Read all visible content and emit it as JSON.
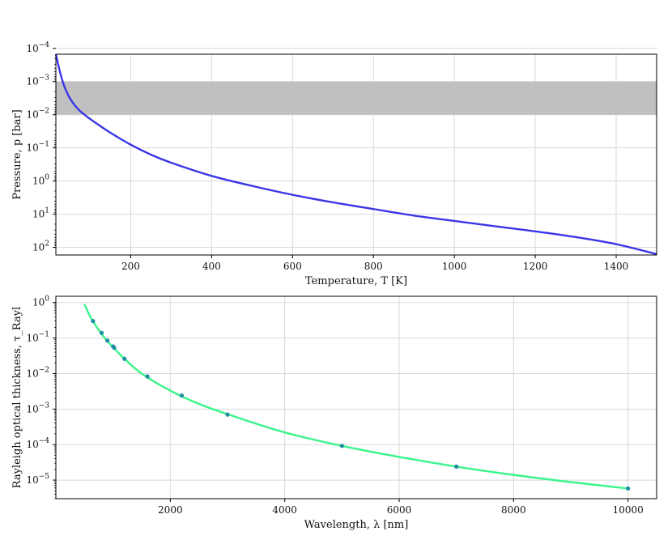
{
  "chart_data": [
    {
      "type": "line",
      "xlabel": "Temperature, T [K]",
      "ylabel": "Pressure, p [bar]",
      "xlim": [
        15,
        1500
      ],
      "ylim": [
        170,
        0.00015
      ],
      "y_scale": "log",
      "y_inverted": true,
      "grid": true,
      "x_ticks": [
        200,
        400,
        600,
        800,
        1000,
        1200,
        1400
      ],
      "x_tick_labels": [
        "200",
        "400",
        "600",
        "800",
        "1000",
        "1200",
        "1400"
      ],
      "y_ticks": [
        0.0001,
        0.001,
        0.01,
        0.1,
        1,
        10,
        100
      ],
      "y_tick_labels": [
        {
          "base": "10",
          "exp": "−4"
        },
        {
          "base": "10",
          "exp": "−3"
        },
        {
          "base": "10",
          "exp": "−2"
        },
        {
          "base": "10",
          "exp": "−1"
        },
        {
          "base": "10",
          "exp": "0"
        },
        {
          "base": "10",
          "exp": "1"
        },
        {
          "base": "10",
          "exp": "2"
        }
      ],
      "shaded_band": {
        "y_from": 0.001,
        "y_to": 0.01,
        "color": "#c0c0c0"
      },
      "series": [
        {
          "color": "#3a36e8",
          "x": [
            15,
            25,
            35,
            45,
            55,
            65,
            75,
            90,
            100,
            120,
            150,
            200,
            250,
            300,
            400,
            500,
            600,
            700,
            800,
            900,
            1000,
            1100,
            1200,
            1300,
            1400,
            1500
          ],
          "y": [
            0.00015,
            0.0005,
            0.0013,
            0.0025,
            0.004,
            0.0058,
            0.0078,
            0.011,
            0.0135,
            0.02,
            0.035,
            0.08,
            0.16,
            0.28,
            0.7,
            1.4,
            2.6,
            4.4,
            7,
            11,
            16,
            23,
            33,
            49,
            80,
            160
          ]
        }
      ]
    },
    {
      "type": "line",
      "xlabel": "Wavelength, λ [nm]",
      "ylabel": "Rayleigh optical thickness, τ_Rayl",
      "xlim": [
        0,
        10500
      ],
      "ylim": [
        3e-06,
        1.5
      ],
      "y_scale": "log",
      "grid": true,
      "x_ticks": [
        2000,
        4000,
        6000,
        8000,
        10000
      ],
      "x_tick_labels": [
        "2000",
        "4000",
        "6000",
        "8000",
        "10000"
      ],
      "y_ticks": [
        1e-05,
        0.0001,
        0.001,
        0.01,
        0.1,
        1
      ],
      "y_tick_labels": [
        {
          "base": "10",
          "exp": "−5"
        },
        {
          "base": "10",
          "exp": "−4"
        },
        {
          "base": "10",
          "exp": "−3"
        },
        {
          "base": "10",
          "exp": "−2"
        },
        {
          "base": "10",
          "exp": "−1"
        },
        {
          "base": "10",
          "exp": "0"
        }
      ],
      "series": [
        {
          "color": "#3af58a",
          "x": [
            500,
            600,
            700,
            800,
            900,
            1000,
            1200,
            1500,
            2000,
            2500,
            3000,
            4000,
            5000,
            6000,
            7000,
            8000,
            9000,
            10000
          ],
          "y": [
            0.9,
            0.4,
            0.22,
            0.13,
            0.082,
            0.055,
            0.026,
            0.01,
            0.0033,
            0.0014,
            0.00072,
            0.00022,
            9.2e-05,
            4.5e-05,
            2.4e-05,
            1.4e-05,
            8.8e-06,
            5.8e-06
          ]
        }
      ],
      "points": {
        "color": "#1e8ea0",
        "x": [
          650,
          800,
          900,
          1000,
          1020,
          1200,
          1600,
          2200,
          3000,
          5000,
          7000,
          10000
        ],
        "y": [
          0.3,
          0.14,
          0.085,
          0.058,
          0.053,
          0.026,
          0.0083,
          0.0024,
          0.0007,
          9.2e-05,
          2.4e-05,
          5.8e-06
        ]
      }
    }
  ]
}
